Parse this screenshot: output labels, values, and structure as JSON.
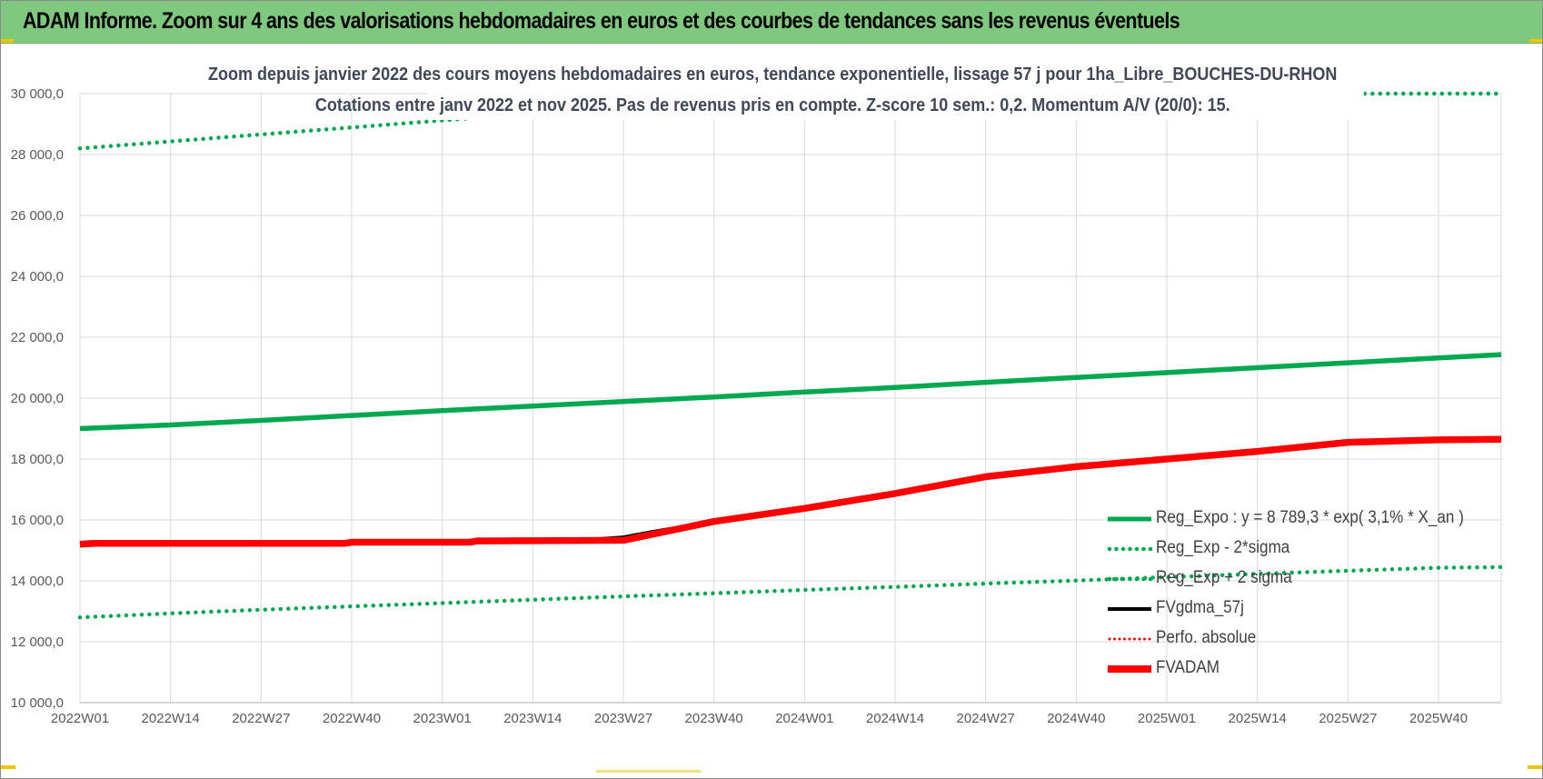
{
  "banner": {
    "title": "ADAM Informe. Zoom sur 4 ans des valorisations hebdomadaires en euros et des courbes de tendances sans les revenus éventuels"
  },
  "colors": {
    "banner_bg": "#7fc97f",
    "reg_expo": "#00a84f",
    "fvgdma": "#000000",
    "perfo": "#ff0000",
    "fvadam": "#ff0000",
    "accent_corner": "#f2c300"
  },
  "chart_data": {
    "type": "line",
    "title": "Zoom depuis janvier 2022 des cours moyens hebdomadaires en euros, tendance exponentielle, lissage 57 j pour 1ha_Libre_BOUCHES-DU-RHON",
    "subtitle": "Cotations entre janv 2022 et nov 2025. Pas de revenus pris en compte. Z-score 10 sem.: 0,2. Momentum A/V (20/0): 15.",
    "xlabel": "",
    "ylabel": "",
    "ylim": [
      10000,
      30000
    ],
    "yticks": [
      10000,
      12000,
      14000,
      16000,
      18000,
      20000,
      22000,
      24000,
      26000,
      28000,
      30000
    ],
    "ytick_labels": [
      "10 000,0",
      "12 000,0",
      "14 000,0",
      "16 000,0",
      "18 000,0",
      "20 000,0",
      "22 000,0",
      "24 000,0",
      "26 000,0",
      "28 000,0",
      "30 000,0"
    ],
    "xlim_weeks": [
      0,
      204
    ],
    "x_ticks": [
      {
        "label": "2022W01",
        "week": 0
      },
      {
        "label": "2022W14",
        "week": 13
      },
      {
        "label": "2022W27",
        "week": 26
      },
      {
        "label": "2022W40",
        "week": 39
      },
      {
        "label": "2023W01",
        "week": 52
      },
      {
        "label": "2023W14",
        "week": 65
      },
      {
        "label": "2023W27",
        "week": 78
      },
      {
        "label": "2023W40",
        "week": 91
      },
      {
        "label": "2024W01",
        "week": 104
      },
      {
        "label": "2024W14",
        "week": 117
      },
      {
        "label": "2024W27",
        "week": 130
      },
      {
        "label": "2024W40",
        "week": 143
      },
      {
        "label": "2025W01",
        "week": 156
      },
      {
        "label": "2025W14",
        "week": 169
      },
      {
        "label": "2025W27",
        "week": 182
      },
      {
        "label": "2025W40",
        "week": 195
      }
    ],
    "grid": true,
    "legend_position": "bottom-right",
    "series": [
      {
        "name": "Reg_Expo : y = 8 789,3 * exp( 3,1% *  X_an )",
        "style": "solid-green",
        "weeks": [
          0,
          13,
          26,
          39,
          52,
          65,
          78,
          91,
          104,
          117,
          130,
          143,
          156,
          169,
          182,
          195,
          204
        ],
        "values": [
          19000,
          19120,
          19270,
          19430,
          19590,
          19740,
          19890,
          20040,
          20200,
          20350,
          20520,
          20680,
          20840,
          21000,
          21160,
          21320,
          21430
        ]
      },
      {
        "name": "Reg_Exp - 2*sigma",
        "style": "dotted-green",
        "weeks": [
          0,
          13,
          26,
          39,
          52,
          60
        ],
        "values": [
          28200,
          28430,
          28660,
          28890,
          29120,
          29260
        ]
      },
      {
        "name": "Reg_Exp + 2 sigma",
        "style": "dotted-green",
        "weeks": [
          0,
          13,
          26,
          39,
          52,
          65,
          78,
          91,
          104,
          117,
          130,
          143,
          156,
          169,
          182,
          195,
          204
        ],
        "values": [
          12800,
          12930,
          13050,
          13160,
          13270,
          13380,
          13490,
          13590,
          13700,
          13800,
          13910,
          14010,
          14120,
          14230,
          14330,
          14430,
          14450
        ]
      },
      {
        "name": "FVgdma_57j",
        "style": "solid-black",
        "weeks": [
          0,
          2,
          38,
          39,
          56,
          57,
          72,
          78,
          82,
          91,
          104,
          117,
          130,
          143,
          156,
          169,
          182,
          195,
          204
        ],
        "values": [
          15200,
          15230,
          15230,
          15270,
          15270,
          15310,
          15330,
          15430,
          15600,
          15950,
          16380,
          16870,
          17400,
          17750,
          18000,
          18260,
          18520,
          18620,
          18640
        ]
      },
      {
        "name": "Perfo. absolue",
        "style": "dotted-red",
        "weeks": [],
        "values": []
      },
      {
        "name": "FVADAM",
        "style": "thick-red",
        "weeks": [
          0,
          2,
          38,
          39,
          56,
          57,
          78,
          91,
          104,
          117,
          130,
          143,
          156,
          169,
          182,
          195,
          204
        ],
        "values": [
          15200,
          15230,
          15230,
          15270,
          15270,
          15310,
          15330,
          15950,
          16380,
          16870,
          17420,
          17750,
          18000,
          18250,
          18550,
          18630,
          18650
        ]
      }
    ]
  }
}
